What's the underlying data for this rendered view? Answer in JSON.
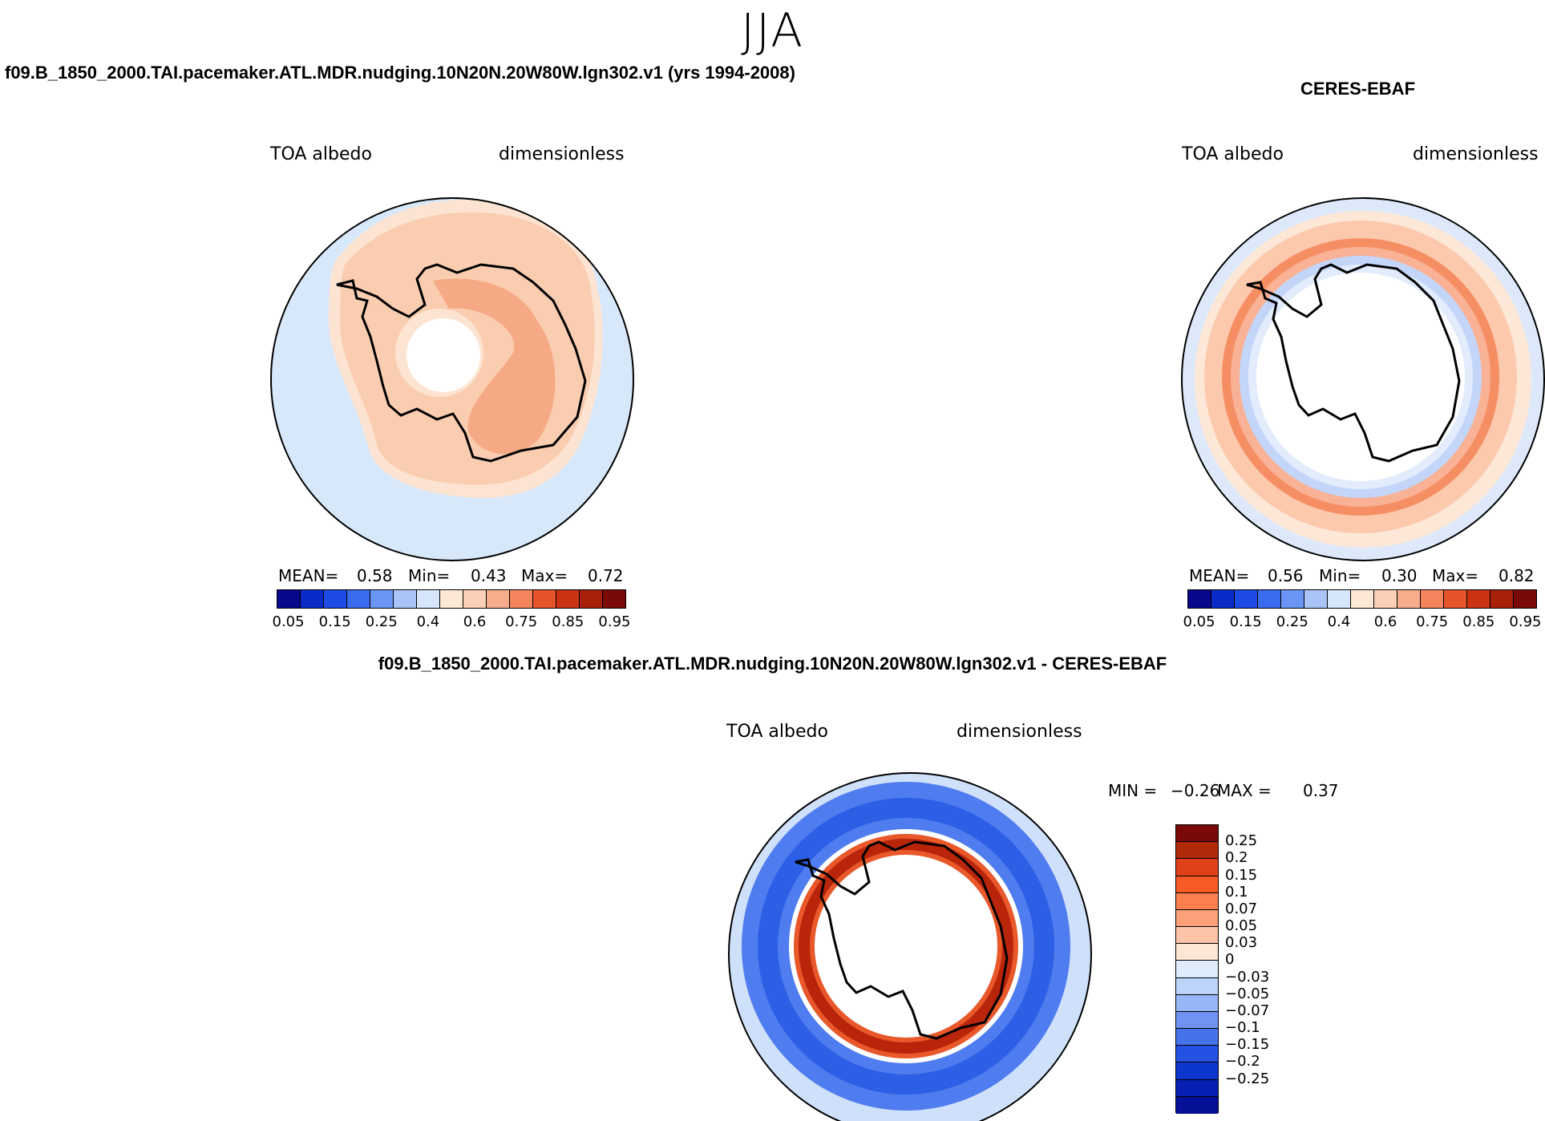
{
  "figure": {
    "season_title": "JJA"
  },
  "panels": {
    "model": {
      "title": "f09.B_1850_2000.TAI.pacemaker.ATL.MDR.nudging.10N20N.20W80W.lgn302.v1 (yrs 1994-2008)",
      "variable": "TOA albedo",
      "units": "dimensionless",
      "mean_label": "MEAN=",
      "mean_value": "0.58",
      "min_label": "Min=",
      "min_value": "0.43",
      "max_label": "Max=",
      "max_value": "0.72"
    },
    "obs": {
      "title": "CERES-EBAF",
      "variable": "TOA albedo",
      "units": "dimensionless",
      "mean_label": "MEAN=",
      "mean_value": "0.56",
      "min_label": "Min=",
      "min_value": "0.30",
      "max_label": "Max=",
      "max_value": "0.82"
    },
    "diff": {
      "title": "f09.B_1850_2000.TAI.pacemaker.ATL.MDR.nudging.10N20N.20W80W.lgn302.v1 - CERES-EBAF",
      "variable": "TOA albedo",
      "units": "dimensionless",
      "min_label": "MIN =",
      "min_value": "−0.26",
      "max_label": "MAX =",
      "max_value": "0.37"
    }
  },
  "colorbars": {
    "abs": {
      "colors": [
        "#08088c",
        "#0a2bc8",
        "#1e4be6",
        "#3a6cf0",
        "#6b95f5",
        "#a9c4f7",
        "#d6e6fb",
        "#fde8d6",
        "#fbd0b6",
        "#f7ac8c",
        "#f3845c",
        "#e6542c",
        "#cc3312",
        "#a8200a",
        "#7a0a08"
      ],
      "tick_labels": [
        "0.05",
        "0.15",
        "0.25",
        "0.4",
        "0.6",
        "0.75",
        "0.85",
        "0.95"
      ]
    },
    "diff": {
      "colors_top_to_bottom": [
        "#7a0a08",
        "#b02a0a",
        "#e0401a",
        "#f75a24",
        "#fa8050",
        "#fba078",
        "#fcc4a8",
        "#fde6d4",
        "#deecfc",
        "#bcd4fa",
        "#97b6f7",
        "#6f93f2",
        "#4673ec",
        "#2552e2",
        "#0d36cf",
        "#0620b4",
        "#061096"
      ],
      "tick_labels": [
        "0.25",
        "0.2",
        "0.15",
        "0.1",
        "0.07",
        "0.05",
        "0.03",
        "0",
        "−0.03",
        "−0.05",
        "−0.07",
        "−0.1",
        "−0.15",
        "−0.2",
        "−0.25"
      ]
    }
  },
  "map_colors": {
    "land_outline": "#000000",
    "model_ocean": "#d8e8fb",
    "model_ring": "#fbcdb0",
    "model_peak": "#f6a985",
    "obs_outer": "#fde0cc",
    "obs_ring": "#f57a4e",
    "obs_blue": "#c3d6fa",
    "diff_blue": "#2c5ee6",
    "diff_red": "#b8250a"
  }
}
